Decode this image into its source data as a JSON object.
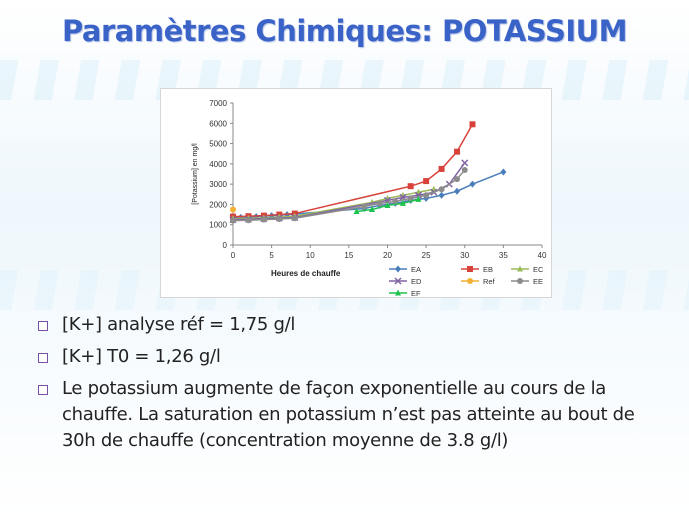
{
  "slide": {
    "title": "Paramètres Chimiques: POTASSIUM",
    "bullets": [
      "[K+] analyse réf = 1,75  g/l",
      "[K+] T0 = 1,26 g/l",
      "Le potassium augmente de façon exponentielle au cours de la chauffe. La saturation en potassium n’est pas atteinte  au bout de 30h de chauffe (concentration moyenne de 3.8  g/l)"
    ]
  },
  "chart_data": {
    "type": "line",
    "xlabel": "Heures de chauffe",
    "ylabel": "[Potassium] en mg/l",
    "xlim": [
      0,
      40
    ],
    "ylim": [
      0,
      7000
    ],
    "xticks": [
      0,
      5,
      10,
      15,
      20,
      25,
      30,
      35,
      40
    ],
    "yticks": [
      0,
      1000,
      2000,
      3000,
      4000,
      5000,
      6000,
      7000
    ],
    "grid": false,
    "legend_position": "bottom",
    "series": [
      {
        "name": "EA",
        "color": "#4a7ebb",
        "marker": "diamond",
        "x": [
          0,
          1,
          3,
          5,
          7,
          17,
          19,
          21,
          23,
          25,
          27,
          29,
          31,
          35
        ],
        "y": [
          1350,
          1360,
          1400,
          1450,
          1500,
          1800,
          1950,
          2050,
          2200,
          2300,
          2450,
          2650,
          3000,
          3600
        ]
      },
      {
        "name": "EB",
        "color": "#d9423b",
        "marker": "square",
        "x": [
          0,
          2,
          4,
          6,
          8,
          23,
          25,
          27,
          29,
          31
        ],
        "y": [
          1400,
          1420,
          1450,
          1500,
          1550,
          2900,
          3150,
          3750,
          4600,
          5950
        ]
      },
      {
        "name": "EC",
        "color": "#9bbb59",
        "marker": "triangle",
        "x": [
          0,
          2,
          4,
          6,
          8,
          18,
          20,
          22,
          24,
          26
        ],
        "y": [
          1300,
          1320,
          1340,
          1380,
          1420,
          2100,
          2300,
          2450,
          2600,
          2750
        ]
      },
      {
        "name": "ED",
        "color": "#8064a2",
        "marker": "x",
        "x": [
          0,
          2,
          4,
          6,
          8,
          20,
          22,
          24,
          26,
          28,
          30
        ],
        "y": [
          1250,
          1270,
          1300,
          1330,
          1350,
          2200,
          2350,
          2450,
          2600,
          3000,
          4050
        ]
      },
      {
        "name": "Ref",
        "color": "#f2b134",
        "marker": "circle",
        "x": [
          0
        ],
        "y": [
          1750
        ]
      },
      {
        "name": "EE",
        "color": "#8c8c8c",
        "marker": "circle",
        "x": [
          0,
          2,
          4,
          6,
          8,
          17,
          19,
          21,
          23,
          25,
          27,
          29,
          30
        ],
        "y": [
          1200,
          1220,
          1250,
          1280,
          1320,
          1900,
          2050,
          2150,
          2300,
          2450,
          2750,
          3250,
          3700
        ]
      },
      {
        "name": "EF",
        "color": "#1cc24d",
        "marker": "triangle",
        "x": [
          16,
          18,
          20,
          22,
          24
        ],
        "y": [
          1650,
          1750,
          1950,
          2050,
          2250
        ]
      }
    ]
  }
}
